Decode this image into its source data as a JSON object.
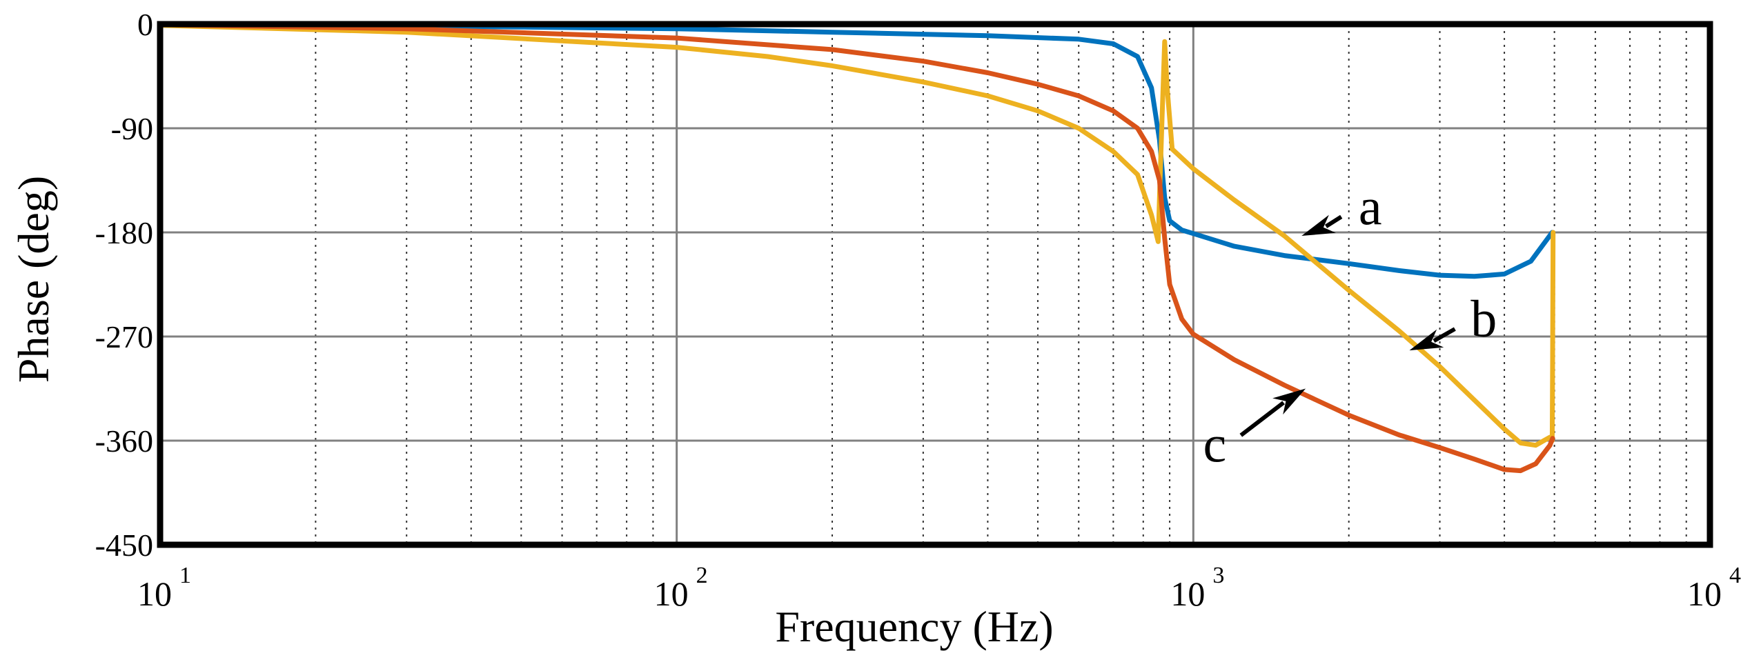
{
  "chart_data": {
    "type": "line",
    "xscale": "log",
    "xlabel": "Frequency  (Hz)",
    "ylabel": "Phase (deg)",
    "xlim": [
      10,
      10000
    ],
    "ylim": [
      -450,
      0
    ],
    "x_ticks": [
      {
        "base": "10",
        "exp": "1",
        "value": 10
      },
      {
        "base": "10",
        "exp": "2",
        "value": 100
      },
      {
        "base": "10",
        "exp": "3",
        "value": 1000
      },
      {
        "base": "10",
        "exp": "4",
        "value": 10000
      }
    ],
    "y_ticks": [
      {
        "label": "0",
        "value": 0
      },
      {
        "label": "-90",
        "value": -90
      },
      {
        "label": "-180",
        "value": -180
      },
      {
        "label": "-270",
        "value": -270
      },
      {
        "label": "-360",
        "value": -360
      },
      {
        "label": "-450",
        "value": -450
      }
    ],
    "grid": true,
    "colors": {
      "a": "#0072BD",
      "b": "#EDB120",
      "c": "#D95319",
      "frame": "#000000",
      "grid": "#808080"
    },
    "series": [
      {
        "name": "a",
        "color": "#0072BD",
        "points": [
          [
            10,
            -0.2
          ],
          [
            30,
            -1.5
          ],
          [
            100,
            -4
          ],
          [
            200,
            -7
          ],
          [
            400,
            -10
          ],
          [
            600,
            -13
          ],
          [
            700,
            -17
          ],
          [
            780,
            -28
          ],
          [
            830,
            -55
          ],
          [
            860,
            -100
          ],
          [
            880,
            -150
          ],
          [
            900,
            -170
          ],
          [
            950,
            -178
          ],
          [
            1000,
            -181
          ],
          [
            1200,
            -192
          ],
          [
            1500,
            -200
          ],
          [
            2000,
            -207
          ],
          [
            2500,
            -213
          ],
          [
            3000,
            -217
          ],
          [
            3500,
            -218
          ],
          [
            4000,
            -216
          ],
          [
            4500,
            -205
          ],
          [
            4950,
            -180
          ]
        ]
      },
      {
        "name": "b",
        "color": "#EDB120",
        "points": [
          [
            10,
            -1
          ],
          [
            30,
            -7
          ],
          [
            100,
            -20
          ],
          [
            150,
            -28
          ],
          [
            200,
            -36
          ],
          [
            300,
            -50
          ],
          [
            400,
            -62
          ],
          [
            500,
            -75
          ],
          [
            600,
            -90
          ],
          [
            700,
            -110
          ],
          [
            780,
            -130
          ],
          [
            830,
            -165
          ],
          [
            855,
            -188
          ],
          [
            860,
            -150
          ],
          [
            870,
            -80
          ],
          [
            880,
            -15
          ],
          [
            890,
            -55
          ],
          [
            910,
            -108
          ],
          [
            1000,
            -125
          ],
          [
            1200,
            -152
          ],
          [
            1500,
            -183
          ],
          [
            2000,
            -230
          ],
          [
            2500,
            -265
          ],
          [
            3000,
            -296
          ],
          [
            3500,
            -325
          ],
          [
            4000,
            -350
          ],
          [
            4300,
            -362
          ],
          [
            4600,
            -364
          ],
          [
            4900,
            -357
          ],
          [
            4950,
            -360
          ],
          [
            4960,
            -290
          ],
          [
            4970,
            -180
          ]
        ]
      },
      {
        "name": "c",
        "color": "#D95319",
        "points": [
          [
            10,
            -0.5
          ],
          [
            30,
            -4
          ],
          [
            100,
            -12
          ],
          [
            200,
            -22
          ],
          [
            300,
            -32
          ],
          [
            400,
            -42
          ],
          [
            500,
            -52
          ],
          [
            600,
            -62
          ],
          [
            700,
            -75
          ],
          [
            780,
            -90
          ],
          [
            830,
            -110
          ],
          [
            860,
            -135
          ],
          [
            880,
            -185
          ],
          [
            900,
            -225
          ],
          [
            950,
            -255
          ],
          [
            1000,
            -268
          ],
          [
            1200,
            -290
          ],
          [
            1500,
            -312
          ],
          [
            2000,
            -338
          ],
          [
            2500,
            -355
          ],
          [
            3000,
            -366
          ],
          [
            3500,
            -376
          ],
          [
            4000,
            -385
          ],
          [
            4300,
            -386
          ],
          [
            4600,
            -380
          ],
          [
            4900,
            -364
          ],
          [
            4960,
            -358
          ]
        ]
      }
    ],
    "annotations": [
      {
        "text": "a",
        "series": "a",
        "anchor": [
          1620,
          -183
        ],
        "label_at": [
          2200,
          -160
        ]
      },
      {
        "text": "b",
        "series": "b",
        "anchor": [
          2620,
          -282
        ],
        "label_at": [
          3650,
          -257
        ]
      },
      {
        "text": "c",
        "series": "c",
        "anchor": [
          1650,
          -315
        ],
        "label_at": [
          1100,
          -365
        ]
      }
    ]
  }
}
